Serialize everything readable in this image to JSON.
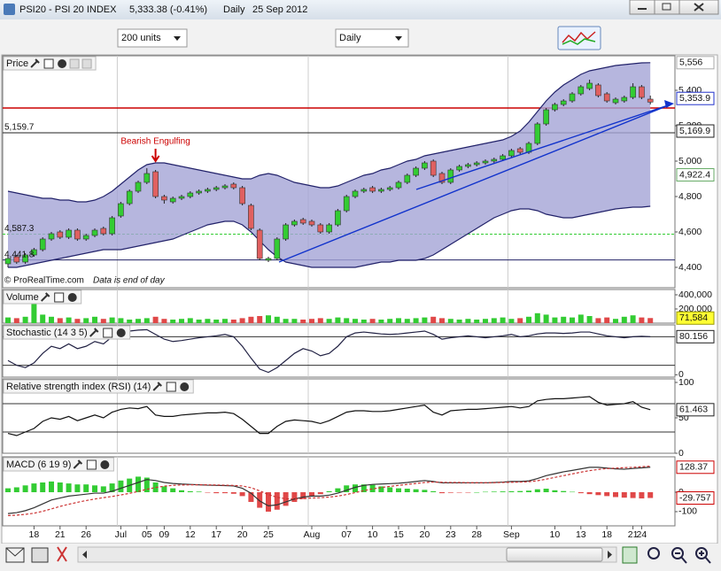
{
  "window": {
    "title": "PSI20 - PSI 20 INDEX",
    "quote": "5,333.38 (-0.41%)",
    "period": "Daily",
    "date": "25 Sep 2012"
  },
  "toolbar": {
    "units": "200 units",
    "period": "Daily"
  },
  "footer": {
    "copyright": "© ProRealTime.com",
    "note": "Data is end of day"
  },
  "annotation": "Bearish Engulfing",
  "chart_data": [
    {
      "type": "candlestick",
      "title": "Price",
      "categories": [
        null,
        null,
        null,
        "18",
        null,
        null,
        "21",
        null,
        null,
        "26",
        null,
        null,
        null,
        "Jul",
        null,
        null,
        "05",
        null,
        "09",
        null,
        null,
        "12",
        null,
        null,
        "17",
        null,
        null,
        "20",
        null,
        null,
        "25",
        null,
        null,
        null,
        null,
        "Aug",
        null,
        null,
        null,
        "07",
        null,
        null,
        "10",
        null,
        null,
        "15",
        null,
        null,
        "20",
        null,
        null,
        "23",
        null,
        null,
        "28",
        null,
        null,
        null,
        "Sep",
        null,
        null,
        null,
        null,
        "10",
        null,
        null,
        "13",
        null,
        null,
        "18",
        null,
        null,
        "21",
        "24",
        null
      ],
      "open": [
        4420,
        4460,
        4430,
        4470,
        4500,
        4560,
        4600,
        4570,
        4610,
        4560,
        4580,
        4620,
        4590,
        4690,
        4760,
        4830,
        4880,
        4940,
        4800,
        4770,
        4790,
        4800,
        4820,
        4830,
        4840,
        4850,
        4870,
        4850,
        4750,
        4610,
        4440,
        4450,
        4560,
        4640,
        4670,
        4660,
        4640,
        4600,
        4640,
        4720,
        4800,
        4830,
        4850,
        4830,
        4840,
        4850,
        4880,
        4920,
        4960,
        5000,
        4930,
        4880,
        4950,
        4970,
        4980,
        4990,
        5000,
        5010,
        5030,
        5070,
        5050,
        5100,
        5210,
        5290,
        5320,
        5340,
        5380,
        5410,
        5430,
        5380,
        5330,
        5340,
        5360,
        5420,
        5350
      ],
      "high": [
        4460,
        4470,
        4480,
        4510,
        4570,
        4600,
        4610,
        4620,
        4620,
        4590,
        4620,
        4630,
        4690,
        4770,
        4840,
        4890,
        4960,
        4950,
        4810,
        4800,
        4810,
        4830,
        4840,
        4850,
        4860,
        4870,
        4880,
        4860,
        4760,
        4620,
        4460,
        4570,
        4650,
        4670,
        4680,
        4670,
        4650,
        4650,
        4730,
        4810,
        4840,
        4850,
        4860,
        4850,
        4860,
        4890,
        4930,
        4970,
        5000,
        5010,
        4940,
        4960,
        4980,
        4990,
        5000,
        5010,
        5020,
        5040,
        5070,
        5080,
        5110,
        5220,
        5300,
        5330,
        5350,
        5390,
        5430,
        5460,
        5440,
        5390,
        5360,
        5370,
        5440,
        5430,
        5370
      ],
      "low": [
        4400,
        4420,
        4420,
        4460,
        4490,
        4550,
        4560,
        4560,
        4550,
        4550,
        4570,
        4580,
        4580,
        4680,
        4750,
        4820,
        4870,
        4790,
        4760,
        4760,
        4780,
        4790,
        4810,
        4820,
        4830,
        4840,
        4840,
        4750,
        4610,
        4440,
        4430,
        4440,
        4550,
        4630,
        4640,
        4630,
        4590,
        4590,
        4630,
        4710,
        4790,
        4820,
        4820,
        4820,
        4830,
        4840,
        4870,
        4910,
        4950,
        4910,
        4870,
        4870,
        4940,
        4960,
        4970,
        4980,
        4990,
        5000,
        5020,
        5040,
        5040,
        5090,
        5200,
        5280,
        5310,
        5330,
        5370,
        5400,
        5360,
        5330,
        5320,
        5330,
        5350,
        5350,
        5320
      ],
      "close": [
        4450,
        4430,
        4470,
        4500,
        4560,
        4590,
        4570,
        4610,
        4560,
        4580,
        4610,
        4590,
        4680,
        4760,
        4830,
        4880,
        4930,
        4800,
        4780,
        4790,
        4800,
        4820,
        4830,
        4840,
        4850,
        4860,
        4850,
        4760,
        4620,
        4450,
        4450,
        4560,
        4640,
        4660,
        4650,
        4640,
        4600,
        4640,
        4720,
        4800,
        4830,
        4840,
        4830,
        4840,
        4850,
        4880,
        4920,
        4960,
        4990,
        4920,
        4880,
        4950,
        4970,
        4980,
        4990,
        5000,
        5010,
        5030,
        5060,
        5050,
        5100,
        5210,
        5290,
        5320,
        5340,
        5380,
        5420,
        5440,
        5370,
        5340,
        5350,
        5360,
        5420,
        5360,
        5333.38
      ],
      "up_color": "#33cc33",
      "down_color": "#e06060",
      "bands": {
        "color": "#22226a",
        "fill": "#a4a4d6",
        "upper": [
          4830,
          4820,
          4810,
          4800,
          4790,
          4790,
          4780,
          4780,
          4770,
          4770,
          4780,
          4800,
          4830,
          4870,
          4910,
          4950,
          4980,
          4990,
          4990,
          4980,
          4970,
          4960,
          4950,
          4940,
          4930,
          4920,
          4910,
          4900,
          4900,
          4920,
          4930,
          4920,
          4900,
          4880,
          4870,
          4860,
          4850,
          4850,
          4860,
          4880,
          4900,
          4920,
          4930,
          4950,
          4960,
          4980,
          5000,
          5010,
          5030,
          5040,
          5050,
          5060,
          5070,
          5080,
          5090,
          5100,
          5110,
          5120,
          5140,
          5170,
          5220,
          5280,
          5340,
          5390,
          5430,
          5460,
          5490,
          5510,
          5520,
          5530,
          5540,
          5545,
          5550,
          5555,
          5556
        ],
        "lower": [
          4400,
          4400,
          4410,
          4420,
          4430,
          4440,
          4450,
          4460,
          4470,
          4480,
          4490,
          4500,
          4500,
          4500,
          4510,
          4520,
          4530,
          4540,
          4550,
          4560,
          4580,
          4600,
          4620,
          4640,
          4650,
          4660,
          4660,
          4640,
          4600,
          4550,
          4500,
          4460,
          4430,
          4420,
          4410,
          4400,
          4400,
          4400,
          4400,
          4400,
          4400,
          4410,
          4420,
          4430,
          4430,
          4440,
          4440,
          4440,
          4450,
          4470,
          4500,
          4530,
          4560,
          4590,
          4620,
          4650,
          4680,
          4700,
          4720,
          4730,
          4730,
          4720,
          4700,
          4690,
          4680,
          4680,
          4690,
          4700,
          4710,
          4720,
          4730,
          4735,
          4740,
          4740,
          4745
        ]
      },
      "ylim": [
        4285,
        5595
      ],
      "yticks": [
        {
          "value": 4400,
          "label": "4,400"
        },
        {
          "value": 4600,
          "label": "4,600"
        },
        {
          "value": 4800,
          "label": "4,800"
        },
        {
          "value": 5000,
          "label": "5,000"
        },
        {
          "value": 5200,
          "label": "5,200"
        },
        {
          "value": 5400,
          "label": "5,400"
        }
      ],
      "levels": [
        {
          "value": 5300,
          "color": "#cc0000"
        },
        {
          "value": 5159.7,
          "label": "5,159.7",
          "color": "#222222"
        },
        {
          "value": 4587.3,
          "label": "4,587.3",
          "color": "#33cc33",
          "style": "dashed"
        },
        {
          "value": 4441.8,
          "label": "4,441.8",
          "color": "#222266"
        }
      ],
      "markers": [
        {
          "value": 5556,
          "label": "5,556",
          "color": "#aaaaaa",
          "fill": "#ffffff"
        },
        {
          "value": 5353.9,
          "label": "5,353.9",
          "color": "#2233cc",
          "fill": "#ffffff"
        },
        {
          "value": 5169.9,
          "label": "5,169.9",
          "color": "#222222",
          "fill": "#ffffff"
        },
        {
          "value": 4922.4,
          "label": "4,922.4",
          "color": "#66aa66",
          "fill": "#ffffff"
        }
      ]
    },
    {
      "type": "bar",
      "title": "Volume",
      "values": [
        80000,
        70000,
        90000,
        270000,
        120000,
        90000,
        70000,
        80000,
        60000,
        70000,
        90000,
        60000,
        80000,
        70000,
        50000,
        60000,
        70000,
        90000,
        60000,
        50000,
        60000,
        70000,
        50000,
        60000,
        50000,
        60000,
        50000,
        70000,
        90000,
        100000,
        110000,
        90000,
        60000,
        60000,
        50000,
        60000,
        70000,
        60000,
        80000,
        70000,
        60000,
        50000,
        60000,
        50000,
        60000,
        70000,
        60000,
        70000,
        80000,
        90000,
        70000,
        60000,
        50000,
        60000,
        50000,
        60000,
        70000,
        80000,
        60000,
        70000,
        90000,
        140000,
        120000,
        80000,
        90000,
        80000,
        120000,
        100000,
        70000,
        80000,
        60000,
        90000,
        110000,
        80000,
        71584
      ],
      "up_color": "#33cc33",
      "down_color": "#e04848",
      "ylim": [
        0,
        475000
      ],
      "yticks": [
        {
          "value": 200000,
          "label": "200,000"
        },
        {
          "value": 400000,
          "label": "400,000"
        }
      ],
      "markers": [
        {
          "value": 71584,
          "label": "71,584",
          "color": "#999900",
          "fill": "#ffff33"
        }
      ]
    },
    {
      "type": "line",
      "title": "Stochastic (14 3 5)",
      "series": [
        {
          "color": "#222244",
          "values": [
            30,
            20,
            15,
            25,
            45,
            60,
            55,
            65,
            55,
            60,
            70,
            65,
            80,
            88,
            92,
            94,
            95,
            85,
            75,
            70,
            72,
            75,
            78,
            80,
            82,
            85,
            80,
            60,
            35,
            12,
            5,
            15,
            30,
            45,
            55,
            50,
            40,
            45,
            60,
            80,
            88,
            90,
            88,
            86,
            85,
            86,
            88,
            90,
            92,
            85,
            75,
            78,
            80,
            82,
            80,
            78,
            80,
            82,
            85,
            80,
            82,
            86,
            88,
            88,
            87,
            88,
            90,
            90,
            86,
            82,
            80,
            78,
            80,
            81,
            80.156
          ]
        }
      ],
      "ylim": [
        -5,
        105
      ],
      "yticks": [
        0
      ],
      "levels": [
        20,
        80
      ],
      "markers": [
        {
          "value": 80.156,
          "label": "80.156",
          "color": "#222222",
          "fill": "#ffffff"
        }
      ]
    },
    {
      "type": "line",
      "title": "Relative strength index (RSI) (14)",
      "series": [
        {
          "color": "#111111",
          "values": [
            28,
            25,
            30,
            35,
            45,
            50,
            48,
            52,
            46,
            50,
            54,
            50,
            58,
            62,
            64,
            63,
            66,
            54,
            52,
            52,
            54,
            55,
            56,
            57,
            57,
            58,
            56,
            48,
            38,
            28,
            28,
            38,
            45,
            47,
            46,
            45,
            42,
            46,
            52,
            58,
            60,
            60,
            59,
            59,
            60,
            62,
            64,
            66,
            68,
            58,
            54,
            60,
            61,
            62,
            62,
            63,
            64,
            65,
            66,
            64,
            66,
            74,
            76,
            77,
            77,
            78,
            79,
            80,
            72,
            68,
            69,
            70,
            73,
            65,
            61.463
          ]
        }
      ],
      "ylim": [
        0,
        105
      ],
      "yticks": [
        0,
        50,
        100
      ],
      "levels": [
        30,
        70
      ],
      "markers": [
        {
          "value": 61.463,
          "label": "61.463",
          "color": "#222222",
          "fill": "#ffffff"
        }
      ]
    },
    {
      "type": "line",
      "title": "MACD (6 19 9)",
      "series": [
        {
          "color": "#333333",
          "values": [
            -110,
            -105,
            -95,
            -80,
            -60,
            -40,
            -30,
            -20,
            -15,
            -10,
            -5,
            -5,
            5,
            20,
            35,
            50,
            65,
            60,
            50,
            45,
            42,
            40,
            38,
            36,
            35,
            34,
            32,
            20,
            -5,
            -45,
            -70,
            -65,
            -50,
            -35,
            -25,
            -20,
            -20,
            -15,
            -5,
            10,
            25,
            35,
            40,
            42,
            44,
            46,
            50,
            55,
            60,
            55,
            48,
            48,
            48,
            48,
            48,
            48,
            50,
            52,
            55,
            55,
            58,
            70,
            85,
            95,
            105,
            112,
            120,
            128,
            128,
            124,
            120,
            118,
            122,
            125,
            128.37
          ]
        },
        {
          "color": "#cc3333",
          "values": [
            -120,
            -118,
            -114,
            -108,
            -98,
            -86,
            -73,
            -62,
            -52,
            -43,
            -35,
            -28,
            -22,
            -14,
            -6,
            4,
            15,
            24,
            31,
            35,
            37,
            38,
            38,
            38,
            37,
            36,
            35,
            32,
            23,
            7,
            -12,
            -26,
            -34,
            -35,
            -33,
            -30,
            -28,
            -25,
            -20,
            -12,
            -2,
            8,
            17,
            24,
            30,
            35,
            40,
            45,
            50,
            52,
            51,
            50,
            50,
            49,
            49,
            49,
            49,
            50,
            51,
            52,
            54,
            59,
            67,
            76,
            85,
            94,
            103,
            111,
            117,
            121,
            124,
            126,
            128,
            131,
            134
          ]
        }
      ],
      "histogram": {
        "up_color": "#33cc33",
        "down_color": "#e04848",
        "values": [
          20,
          25,
          35,
          45,
          50,
          55,
          50,
          45,
          40,
          40,
          35,
          30,
          45,
          60,
          70,
          80,
          75,
          50,
          30,
          20,
          10,
          5,
          3,
          -2,
          -5,
          -5,
          -8,
          -20,
          -50,
          -80,
          -100,
          -90,
          -70,
          -50,
          -35,
          -20,
          -10,
          5,
          20,
          35,
          40,
          40,
          38,
          30,
          25,
          20,
          18,
          15,
          12,
          5,
          -5,
          -3,
          -2,
          -1,
          0,
          2,
          3,
          4,
          5,
          6,
          8,
          15,
          18,
          10,
          6,
          2,
          -5,
          -10,
          -15,
          -20,
          -25,
          -28,
          -30,
          -32,
          -29.757
        ]
      },
      "ylim": [
        -173,
        182
      ],
      "yticks": [
        -100,
        0
      ],
      "markers": [
        {
          "value": 128.37,
          "label": "128.37",
          "color": "#cc0000",
          "fill": "#ffffff"
        },
        {
          "value": -29.757,
          "label": "-29.757",
          "color": "#cc0000",
          "fill": "#ffffff"
        }
      ]
    }
  ]
}
